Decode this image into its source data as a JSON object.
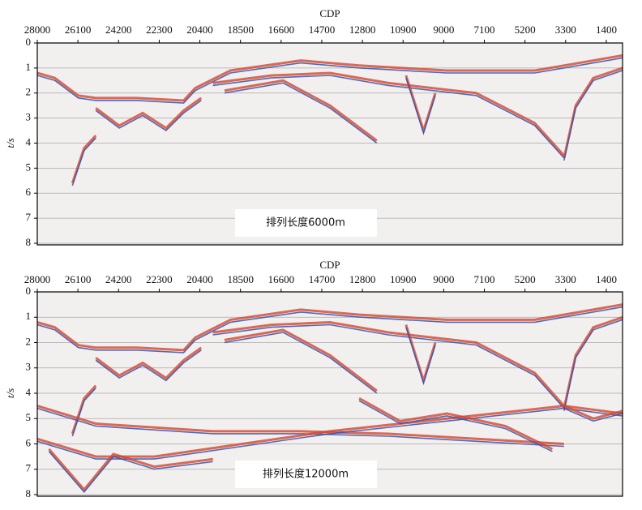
{
  "figure": {
    "panels": [
      {
        "x_label": "CDP",
        "y_label": "t/s",
        "xlim": [
          28000,
          640
        ],
        "xticks": [
          28000,
          26100,
          24200,
          22300,
          20400,
          18500,
          16600,
          14700,
          12800,
          10900,
          9000,
          7100,
          5200,
          3300,
          1400
        ],
        "ylim": [
          0,
          8
        ],
        "yticks": [
          0,
          1,
          2,
          3,
          4,
          5,
          6,
          7,
          8
        ],
        "annotation": "排列长度6000m"
      },
      {
        "x_label": "CDP",
        "y_label": "t/s",
        "xlim": [
          28000,
          640
        ],
        "xticks": [
          28000,
          26100,
          24200,
          22300,
          20400,
          18500,
          16600,
          14700,
          12800,
          10900,
          9000,
          7100,
          5200,
          3300,
          1400
        ],
        "ylim": [
          0,
          8
        ],
        "yticks": [
          0,
          1,
          2,
          3,
          4,
          5,
          6,
          7,
          8
        ],
        "annotation": "排列长度12000m"
      }
    ]
  }
}
